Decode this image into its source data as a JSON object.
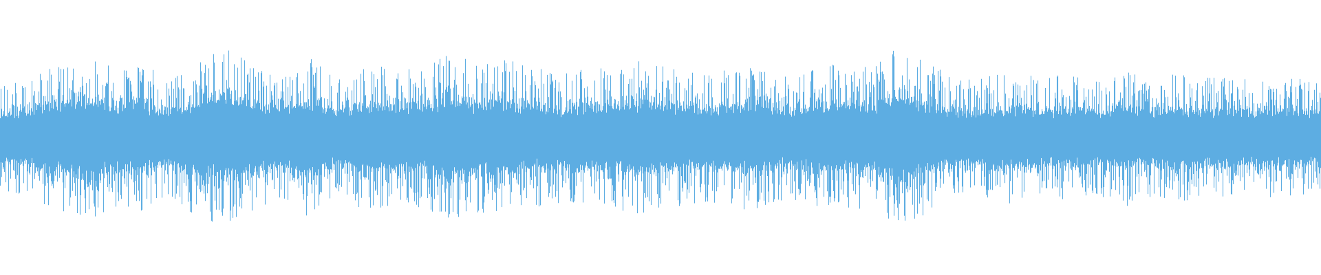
{
  "waveform": {
    "color": "#5dade2",
    "background": "#ffffff",
    "envelope": [
      0.55,
      0.6,
      0.75,
      0.9,
      0.7,
      0.75,
      0.6,
      0.8,
      0.9,
      0.75,
      0.65,
      0.8,
      0.6,
      0.75,
      0.7,
      0.7,
      0.85,
      0.75,
      0.8,
      0.7,
      0.65,
      0.7,
      0.75,
      0.8,
      0.7,
      0.65,
      0.7,
      0.75,
      0.6,
      0.7,
      0.75,
      0.7,
      0.95,
      0.75,
      0.6,
      0.6,
      0.7,
      0.6,
      0.65,
      0.6,
      0.7,
      0.6,
      0.65,
      0.6,
      0.6,
      0.6,
      0.6,
      0.55
    ],
    "seed": 7
  }
}
